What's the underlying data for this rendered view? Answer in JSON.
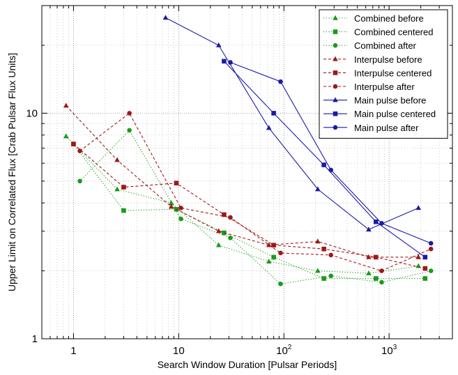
{
  "chart_data": {
    "type": "line",
    "title": "",
    "xlabel": "Search Window Duration [Pulsar Periods]",
    "ylabel": "Upper Limit on Correlated Flux [Crab Pulsar Flux Units]",
    "xscale": "log",
    "yscale": "log",
    "xlim": [
      0.5,
      4000
    ],
    "ylim": [
      1,
      30
    ],
    "grid": true,
    "legend": "top-right",
    "x_ticks": [
      {
        "value": 1,
        "base": "1",
        "exp": ""
      },
      {
        "value": 10,
        "base": "10",
        "exp": ""
      },
      {
        "value": 100,
        "base": "10",
        "exp": "2"
      },
      {
        "value": 1000,
        "base": "10",
        "exp": "3"
      }
    ],
    "y_ticks": [
      {
        "value": 1,
        "label": "1"
      },
      {
        "value": 10,
        "label": "10"
      }
    ],
    "series": [
      {
        "name": "Combined before",
        "color": "#1a9a1a",
        "dash": "dot",
        "marker": "triangle",
        "x": [
          0.85,
          2.6,
          8.5,
          24,
          72,
          210,
          640,
          1900
        ],
        "y": [
          7.9,
          4.6,
          4.0,
          2.6,
          2.2,
          2.0,
          1.95,
          2.1
        ]
      },
      {
        "name": "Combined centered",
        "color": "#1a9a1a",
        "dash": "dot",
        "marker": "square",
        "x": [
          1.0,
          3.0,
          9.5,
          27,
          80,
          240,
          750,
          2200
        ],
        "y": [
          7.3,
          3.7,
          3.75,
          2.95,
          2.3,
          1.85,
          1.85,
          1.85
        ]
      },
      {
        "name": "Combined after",
        "color": "#1a9a1a",
        "dash": "dot",
        "marker": "circle",
        "x": [
          1.15,
          3.4,
          10.5,
          31,
          93,
          280,
          850,
          2500
        ],
        "y": [
          5.0,
          8.4,
          3.4,
          2.8,
          1.75,
          1.9,
          1.78,
          2.0
        ]
      },
      {
        "name": "Interpulse before",
        "color": "#a01818",
        "dash": "dash",
        "marker": "triangle",
        "x": [
          0.85,
          2.6,
          8.5,
          24,
          72,
          210,
          640,
          1900
        ],
        "y": [
          10.8,
          6.2,
          3.85,
          3.0,
          2.6,
          2.7,
          2.3,
          2.3
        ]
      },
      {
        "name": "Interpulse centered",
        "color": "#a01818",
        "dash": "dash",
        "marker": "square",
        "x": [
          1.0,
          3.0,
          9.5,
          27,
          80,
          240,
          750,
          2200
        ],
        "y": [
          7.3,
          4.7,
          4.9,
          3.55,
          2.6,
          2.5,
          2.3,
          2.05
        ]
      },
      {
        "name": "Interpulse after",
        "color": "#a01818",
        "dash": "dash",
        "marker": "circle",
        "x": [
          1.15,
          3.4,
          10.5,
          31,
          93,
          280,
          850,
          2500
        ],
        "y": [
          6.8,
          10.0,
          3.8,
          3.45,
          2.4,
          2.35,
          2.0,
          2.5
        ]
      },
      {
        "name": "Main pulse before",
        "color": "#1a1aaa",
        "dash": "solid",
        "marker": "triangle",
        "x": [
          7.5,
          24,
          72,
          210,
          640,
          1900
        ],
        "y": [
          26.5,
          20.0,
          8.6,
          4.6,
          3.05,
          3.8
        ]
      },
      {
        "name": "Main pulse centered",
        "color": "#1a1aaa",
        "dash": "solid",
        "marker": "square",
        "x": [
          27,
          80,
          240,
          750,
          2200
        ],
        "y": [
          17.0,
          10.0,
          5.9,
          3.3,
          2.3
        ]
      },
      {
        "name": "Main pulse after",
        "color": "#1a1aaa",
        "dash": "solid",
        "marker": "circle",
        "x": [
          31,
          93,
          280,
          850,
          2500
        ],
        "y": [
          16.8,
          13.8,
          5.6,
          3.25,
          2.65
        ]
      }
    ]
  }
}
